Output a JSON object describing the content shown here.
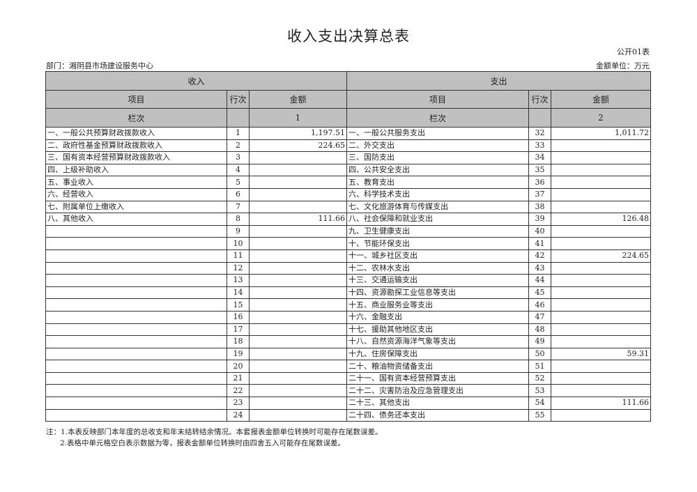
{
  "title": "收入支出决算总表",
  "form_code": "公开01表",
  "department": "部门：湘阴县市场建设服务中心",
  "unit": "金额单位：万元",
  "headers": {
    "income": "收入",
    "expense": "支出",
    "item": "项目",
    "line": "行次",
    "amount": "金额",
    "column": "栏次",
    "col1": "1",
    "col2": "2"
  },
  "rows": [
    {
      "in_item": "一、一般公共预算财政拨款收入",
      "in_line": "1",
      "in_amount": "1,197.51",
      "ex_item": "一、一般公共服务支出",
      "ex_line": "32",
      "ex_amount": "1,011.72"
    },
    {
      "in_item": "二、政府性基金预算财政拨款收入",
      "in_line": "2",
      "in_amount": "224.65",
      "ex_item": "二、外交支出",
      "ex_line": "33",
      "ex_amount": ""
    },
    {
      "in_item": "三、国有资本经营预算财政拨款收入",
      "in_line": "3",
      "in_amount": "",
      "ex_item": "三、国防支出",
      "ex_line": "34",
      "ex_amount": ""
    },
    {
      "in_item": "四、上级补助收入",
      "in_line": "4",
      "in_amount": "",
      "ex_item": "四、公共安全支出",
      "ex_line": "35",
      "ex_amount": ""
    },
    {
      "in_item": "五、事业收入",
      "in_line": "5",
      "in_amount": "",
      "ex_item": "五、教育支出",
      "ex_line": "36",
      "ex_amount": ""
    },
    {
      "in_item": "六、经营收入",
      "in_line": "6",
      "in_amount": "",
      "ex_item": "六、科学技术支出",
      "ex_line": "37",
      "ex_amount": ""
    },
    {
      "in_item": "七、附属单位上缴收入",
      "in_line": "7",
      "in_amount": "",
      "ex_item": "七、文化旅游体育与传媒支出",
      "ex_line": "38",
      "ex_amount": ""
    },
    {
      "in_item": "八、其他收入",
      "in_line": "8",
      "in_amount": "111.66",
      "ex_item": "八、社会保障和就业支出",
      "ex_line": "39",
      "ex_amount": "126.48"
    },
    {
      "in_item": "",
      "in_line": "9",
      "in_amount": "",
      "ex_item": "九、卫生健康支出",
      "ex_line": "40",
      "ex_amount": ""
    },
    {
      "in_item": "",
      "in_line": "10",
      "in_amount": "",
      "ex_item": "十、节能环保支出",
      "ex_line": "41",
      "ex_amount": ""
    },
    {
      "in_item": "",
      "in_line": "11",
      "in_amount": "",
      "ex_item": "十一、城乡社区支出",
      "ex_line": "42",
      "ex_amount": "224.65"
    },
    {
      "in_item": "",
      "in_line": "12",
      "in_amount": "",
      "ex_item": "十二、农林水支出",
      "ex_line": "43",
      "ex_amount": ""
    },
    {
      "in_item": "",
      "in_line": "13",
      "in_amount": "",
      "ex_item": "十三、交通运输支出",
      "ex_line": "44",
      "ex_amount": ""
    },
    {
      "in_item": "",
      "in_line": "14",
      "in_amount": "",
      "ex_item": "十四、资源勘探工业信息等支出",
      "ex_line": "45",
      "ex_amount": ""
    },
    {
      "in_item": "",
      "in_line": "15",
      "in_amount": "",
      "ex_item": "十五、商业服务业等支出",
      "ex_line": "46",
      "ex_amount": ""
    },
    {
      "in_item": "",
      "in_line": "16",
      "in_amount": "",
      "ex_item": "十六、金融支出",
      "ex_line": "47",
      "ex_amount": ""
    },
    {
      "in_item": "",
      "in_line": "17",
      "in_amount": "",
      "ex_item": "十七、援助其他地区支出",
      "ex_line": "48",
      "ex_amount": ""
    },
    {
      "in_item": "",
      "in_line": "18",
      "in_amount": "",
      "ex_item": "十八、自然资源海洋气象等支出",
      "ex_line": "49",
      "ex_amount": ""
    },
    {
      "in_item": "",
      "in_line": "19",
      "in_amount": "",
      "ex_item": "十九、住房保障支出",
      "ex_line": "50",
      "ex_amount": "59.31"
    },
    {
      "in_item": "",
      "in_line": "20",
      "in_amount": "",
      "ex_item": "二十、粮油物资储备支出",
      "ex_line": "51",
      "ex_amount": ""
    },
    {
      "in_item": "",
      "in_line": "21",
      "in_amount": "",
      "ex_item": "二十一、国有资本经营预算支出",
      "ex_line": "52",
      "ex_amount": ""
    },
    {
      "in_item": "",
      "in_line": "22",
      "in_amount": "",
      "ex_item": "二十二、灾害防治及应急管理支出",
      "ex_line": "53",
      "ex_amount": ""
    },
    {
      "in_item": "",
      "in_line": "23",
      "in_amount": "",
      "ex_item": "二十三、其他支出",
      "ex_line": "54",
      "ex_amount": "111.66"
    },
    {
      "in_item": "",
      "in_line": "24",
      "in_amount": "",
      "ex_item": "二十四、债务还本支出",
      "ex_line": "55",
      "ex_amount": ""
    }
  ],
  "notes": [
    "注：1.本表反映部门本年度的总收支和年末结转结余情况。本套报表金额单位转换时可能存在尾数误差。",
    "2.表格中单元格空白表示数据为零，报表金额单位转换时由四舍五入可能存在尾数误差。"
  ]
}
